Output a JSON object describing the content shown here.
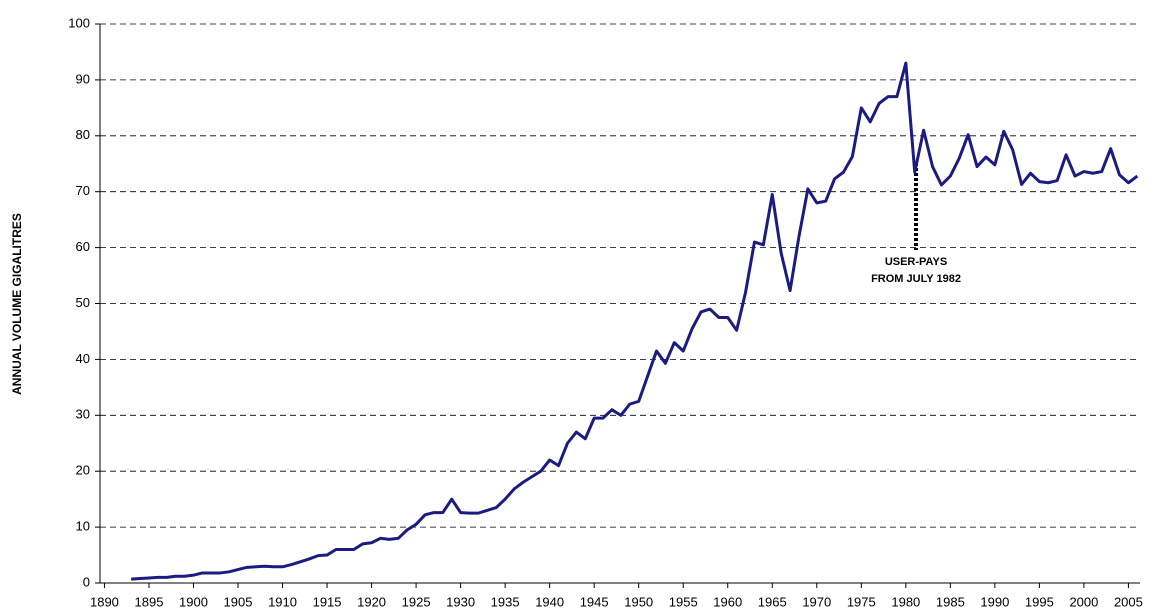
{
  "chart_data": {
    "type": "line",
    "y_label": "ANNUAL VOLUME GIGALITRES",
    "annotation": [
      "USER-PAYS",
      "FROM JULY 1982"
    ],
    "x": [
      1893,
      1894,
      1895,
      1896,
      1897,
      1898,
      1899,
      1900,
      1901,
      1902,
      1903,
      1904,
      1905,
      1906,
      1907,
      1908,
      1909,
      1910,
      1911,
      1912,
      1913,
      1914,
      1915,
      1916,
      1917,
      1918,
      1919,
      1920,
      1921,
      1922,
      1923,
      1924,
      1925,
      1926,
      1927,
      1928,
      1929,
      1930,
      1931,
      1932,
      1933,
      1934,
      1935,
      1936,
      1937,
      1938,
      1939,
      1940,
      1941,
      1942,
      1943,
      1944,
      1945,
      1946,
      1947,
      1948,
      1949,
      1950,
      1951,
      1952,
      1953,
      1954,
      1955,
      1956,
      1957,
      1958,
      1959,
      1960,
      1961,
      1962,
      1963,
      1964,
      1965,
      1966,
      1967,
      1968,
      1969,
      1970,
      1971,
      1972,
      1973,
      1974,
      1975,
      1976,
      1977,
      1978,
      1979,
      1980,
      1981,
      1982,
      1983,
      1984,
      1985,
      1986,
      1987,
      1988,
      1989,
      1990,
      1991,
      1992,
      1993,
      1994,
      1995,
      1996,
      1997,
      1998,
      1999,
      2000,
      2001,
      2002,
      2003,
      2004,
      2005,
      2006
    ],
    "series": [
      {
        "color": "#1c1c80",
        "values": [
          0.7,
          0.8,
          0.9,
          1.0,
          1.0,
          1.2,
          1.2,
          1.4,
          1.8,
          1.8,
          1.8,
          2.0,
          2.4,
          2.8,
          2.9,
          3.0,
          2.9,
          2.9,
          3.3,
          3.8,
          4.3,
          4.9,
          5.0,
          6.0,
          6.0,
          6.0,
          7.0,
          7.2,
          8.0,
          7.8,
          8.0,
          9.5,
          10.5,
          12.2,
          12.6,
          12.6,
          15.0,
          12.6,
          12.5,
          12.5,
          13.0,
          13.5,
          15.0,
          16.8,
          18.0,
          19.0,
          20.0,
          22.0,
          21.0,
          25.0,
          27.0,
          25.8,
          29.5,
          29.5,
          31.0,
          30.0,
          32.0,
          32.5,
          37.0,
          41.5,
          39.3,
          43.0,
          41.5,
          45.5,
          48.5,
          49.0,
          47.5,
          47.5,
          45.2,
          52.0,
          61.0,
          60.5,
          69.5,
          59.0,
          52.3,
          62.0,
          70.5,
          68.0,
          68.3,
          72.3,
          73.5,
          76.3,
          85.0,
          82.5,
          85.8,
          87.0,
          87.0,
          93.0,
          73.5,
          81.0,
          74.5,
          71.2,
          72.8,
          76.0,
          80.2,
          74.5,
          76.2,
          74.8,
          80.8,
          77.5,
          71.3,
          73.3,
          71.8,
          71.6,
          72.0,
          76.6,
          72.8,
          73.6,
          73.3,
          73.6,
          77.7,
          73.0,
          71.6,
          72.8
        ]
      }
    ],
    "xlim": [
      1889.5,
      2006.3
    ],
    "xticks": [
      1890,
      1895,
      1900,
      1905,
      1910,
      1915,
      1920,
      1925,
      1930,
      1935,
      1940,
      1945,
      1950,
      1955,
      1960,
      1965,
      1970,
      1975,
      1980,
      1985,
      1990,
      1995,
      2000,
      2005
    ],
    "ylim": [
      0,
      100
    ],
    "yticks": [
      0,
      10,
      20,
      30,
      40,
      50,
      60,
      70,
      80,
      90,
      100
    ],
    "grid": true
  }
}
